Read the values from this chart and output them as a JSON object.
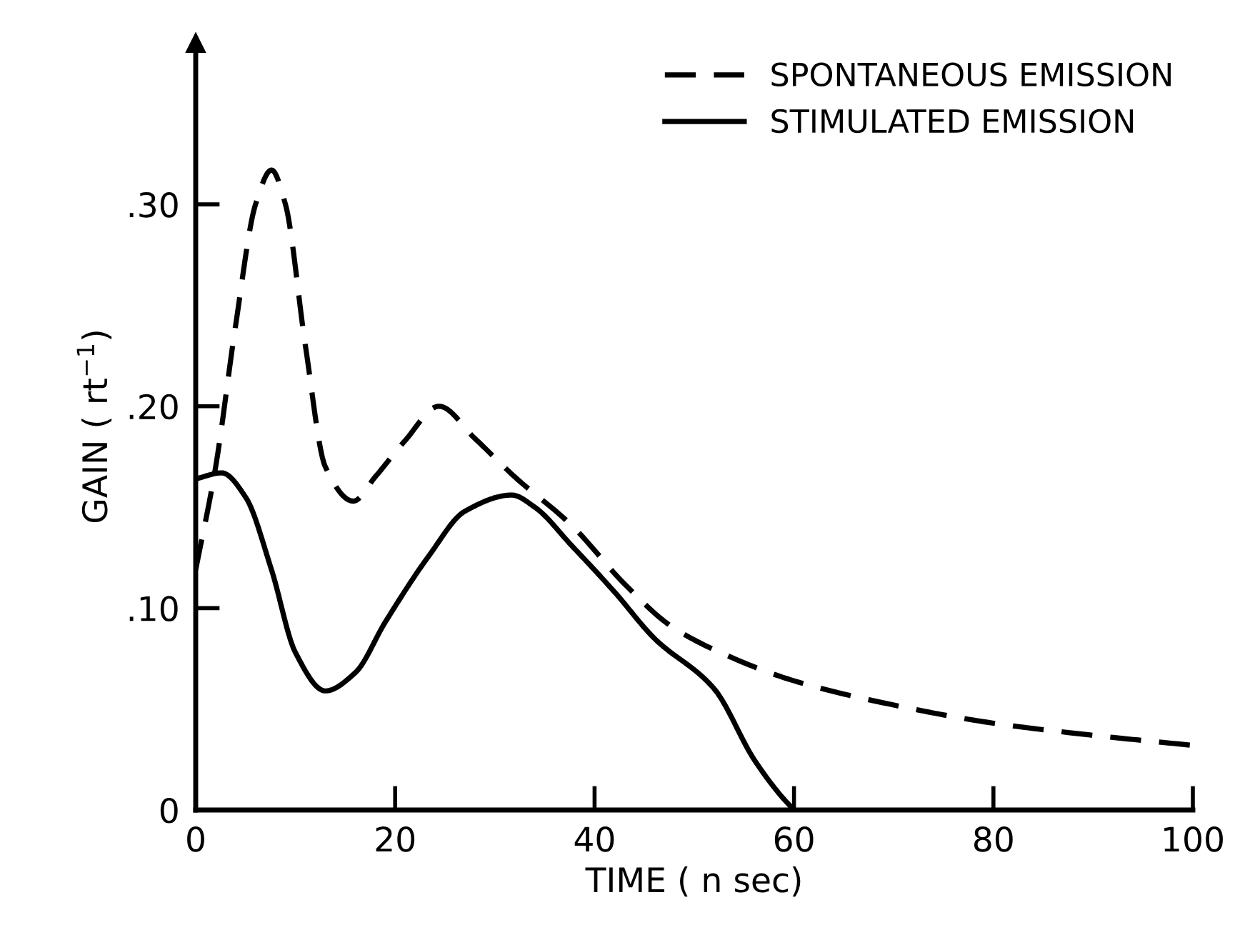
{
  "chart_data": {
    "type": "line",
    "xlabel": "TIME ( n sec)",
    "ylabel": "GAIN ( rt$^{−1}$)",
    "xlim": [
      0,
      100
    ],
    "ylim": [
      0,
      0.38
    ],
    "xticks": [
      0,
      20,
      40,
      60,
      80,
      100
    ],
    "yticks": [
      {
        "value": 0,
        "label": "0"
      },
      {
        "value": 0.1,
        "label": ".10"
      },
      {
        "value": 0.2,
        "label": ".20"
      },
      {
        "value": 0.3,
        "label": ".30"
      }
    ],
    "grid": false,
    "legend": "top right",
    "marker": "none",
    "series": [
      {
        "name": "SPONTANEOUS EMISSION",
        "color": "#000000",
        "line_style": "dashed",
        "x": [
          0,
          2,
          4,
          6,
          7.6,
          9,
          11,
          13,
          15.8,
          18,
          21,
          24.4,
          28,
          32,
          37.7,
          43,
          47.7,
          54,
          60,
          70,
          80,
          90,
          100
        ],
        "values": [
          0.119,
          0.17,
          0.24,
          0.3,
          0.317,
          0.3,
          0.23,
          0.17,
          0.153,
          0.165,
          0.183,
          0.2,
          0.184,
          0.165,
          0.141,
          0.112,
          0.091,
          0.075,
          0.064,
          0.052,
          0.043,
          0.037,
          0.032
        ]
      },
      {
        "name": "STIMULATED EMISSION",
        "color": "#000000",
        "line_style": "solid",
        "x": [
          0,
          2.6,
          5,
          7.6,
          10,
          13,
          16,
          19,
          23.4,
          27,
          31.7,
          34,
          37.7,
          42,
          46,
          52,
          56,
          58.7,
          60
        ],
        "values": [
          0.164,
          0.167,
          0.155,
          0.119,
          0.078,
          0.059,
          0.068,
          0.093,
          0.126,
          0.148,
          0.156,
          0.15,
          0.131,
          0.108,
          0.085,
          0.06,
          0.025,
          0.007,
          0
        ]
      }
    ]
  }
}
